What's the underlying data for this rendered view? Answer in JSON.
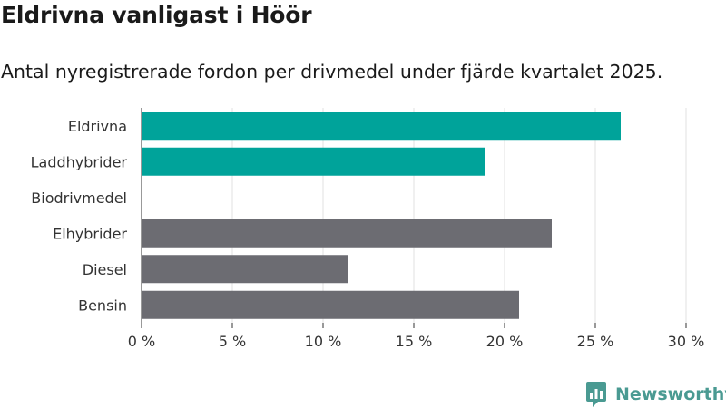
{
  "header": {
    "title": "Eldrivna vanligast i Höör",
    "subtitle": "Antal nyregistrerade fordon per drivmedel under fjärde kvartalet 2025."
  },
  "chart_data": {
    "type": "bar",
    "orientation": "horizontal",
    "categories": [
      "Eldrivna",
      "Laddhybrider",
      "Biodrivmedel",
      "Elhybrider",
      "Diesel",
      "Bensin"
    ],
    "values": [
      26.4,
      18.9,
      0,
      22.6,
      11.4,
      20.8
    ],
    "colors": [
      "#00a39a",
      "#00a39a",
      "#00a39a",
      "#6c6c72",
      "#6c6c72",
      "#6c6c72"
    ],
    "xlim": [
      0,
      30
    ],
    "xticks": [
      0,
      5,
      10,
      15,
      20,
      25,
      30
    ],
    "xtick_labels": [
      "0 %",
      "5 %",
      "10 %",
      "15 %",
      "20 %",
      "25 %",
      "30 %"
    ],
    "grid": true
  },
  "branding": {
    "name": "Newsworthy",
    "icon": "newsworthy-logo-icon",
    "color": "#4a9a92"
  }
}
